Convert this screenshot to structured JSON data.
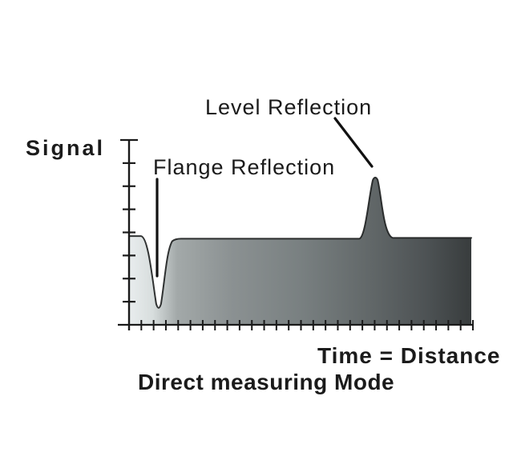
{
  "page": {
    "background": "#ffffff",
    "text_color": "#1b1b1b"
  },
  "labels": {
    "y_axis": "Signal",
    "x_axis": "Time = Distance",
    "caption": "Direct measuring Mode",
    "flange_annotation": "Flange Reflection",
    "level_annotation": "Level Reflection"
  },
  "chart_data": {
    "type": "area",
    "title": "Direct measuring Mode",
    "xlabel": "Time = Distance",
    "ylabel": "Signal",
    "grid": false,
    "legend": false,
    "axis_color": "#1a1a1a",
    "curve_stroke_color": "#1f2222",
    "annotation_line_color": "#111111",
    "x_axis": {
      "tick_count": 29,
      "tick_labels": []
    },
    "y_axis": {
      "tick_count": 8,
      "tick_labels": []
    },
    "series": [
      {
        "name": "echo-signal",
        "plateau_level": 0.47,
        "start_level": 0.48,
        "end_x_frac": 1.0,
        "features": [
          {
            "name": "flange-reflection",
            "kind": "dip",
            "label": "Flange Reflection",
            "x_frac": 0.086,
            "level": 0.07
          },
          {
            "name": "level-reflection",
            "kind": "peak",
            "label": "Level Reflection",
            "x_frac": 0.716,
            "level": 0.81
          }
        ]
      }
    ],
    "fill_gradient_stops": [
      [
        "0%",
        "#e9edee"
      ],
      [
        "7%",
        "#d7dddd"
      ],
      [
        "14%",
        "#a3a9a9"
      ],
      [
        "30%",
        "#8b9192"
      ],
      [
        "50%",
        "#798081"
      ],
      [
        "70%",
        "#626869"
      ],
      [
        "87%",
        "#4d5254"
      ],
      [
        "100%",
        "#383c3d"
      ]
    ]
  }
}
